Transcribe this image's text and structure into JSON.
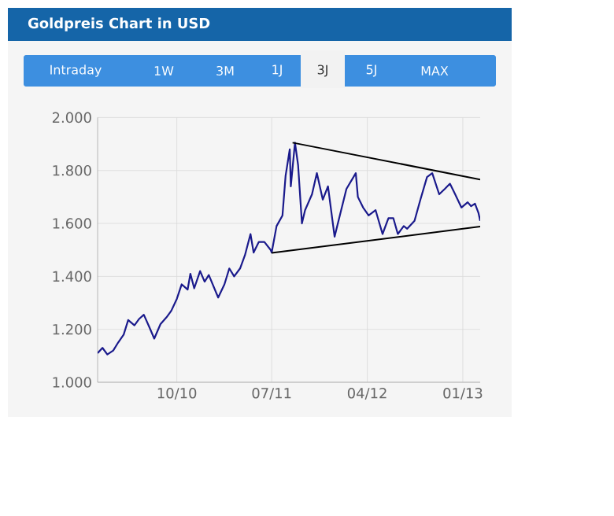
{
  "chart_data": {
    "type": "line",
    "title": "Goldpreis Chart in USD",
    "annotations": [
      "Intraday",
      "1W",
      "3M",
      "1J",
      "3J",
      "5J",
      "MAX"
    ],
    "xlim": [
      "2010-02-15",
      "2013-02-20"
    ],
    "xticks": [
      {
        "value": "2010-10-01",
        "label": "10/10"
      },
      {
        "value": "2011-07-01",
        "label": "07/11"
      },
      {
        "value": "2012-04-01",
        "label": "04/12"
      },
      {
        "value": "2013-01-01",
        "label": "01/13"
      }
    ],
    "ylim": [
      1000,
      2000
    ],
    "yticks": [
      {
        "value": 1000,
        "label": "1.000"
      },
      {
        "value": 1200,
        "label": "1.200"
      },
      {
        "value": 1400,
        "label": "1.400"
      },
      {
        "value": 1600,
        "label": "1.600"
      },
      {
        "value": 1800,
        "label": "1.800"
      },
      {
        "value": 2000,
        "label": "2.000"
      }
    ],
    "grid": true,
    "series": [
      {
        "color": "#1a1a8c",
        "x": [
          "2010-02-15",
          "2010-03-01",
          "2010-03-15",
          "2010-04-01",
          "2010-04-15",
          "2010-05-01",
          "2010-05-14",
          "2010-06-01",
          "2010-06-15",
          "2010-06-28",
          "2010-07-15",
          "2010-07-28",
          "2010-08-15",
          "2010-09-01",
          "2010-09-15",
          "2010-10-01",
          "2010-10-15",
          "2010-11-01",
          "2010-11-09",
          "2010-11-20",
          "2010-12-07",
          "2010-12-20",
          "2011-01-01",
          "2011-01-28",
          "2011-02-15",
          "2011-03-01",
          "2011-03-15",
          "2011-04-01",
          "2011-04-15",
          "2011-05-01",
          "2011-05-10",
          "2011-05-25",
          "2011-06-10",
          "2011-06-28",
          "2011-07-01",
          "2011-07-15",
          "2011-08-01",
          "2011-08-10",
          "2011-08-22",
          "2011-08-25",
          "2011-09-06",
          "2011-09-15",
          "2011-09-26",
          "2011-10-05",
          "2011-10-25",
          "2011-11-08",
          "2011-11-25",
          "2011-12-10",
          "2011-12-29",
          "2012-01-15",
          "2012-02-01",
          "2012-02-28",
          "2012-03-05",
          "2012-03-20",
          "2012-04-05",
          "2012-04-25",
          "2012-05-15",
          "2012-06-01",
          "2012-06-15",
          "2012-06-28",
          "2012-07-15",
          "2012-07-25",
          "2012-08-15",
          "2012-09-01",
          "2012-09-20",
          "2012-10-05",
          "2012-10-15",
          "2012-10-25",
          "2012-11-10",
          "2012-11-25",
          "2012-12-10",
          "2012-12-28",
          "2013-01-15",
          "2013-01-25",
          "2013-02-05",
          "2013-02-15",
          "2013-02-20"
        ],
        "values": [
          1110,
          1130,
          1105,
          1120,
          1150,
          1180,
          1235,
          1215,
          1240,
          1255,
          1205,
          1165,
          1220,
          1245,
          1270,
          1315,
          1370,
          1350,
          1410,
          1355,
          1420,
          1380,
          1405,
          1320,
          1370,
          1430,
          1400,
          1430,
          1480,
          1560,
          1490,
          1530,
          1530,
          1500,
          1490,
          1590,
          1630,
          1780,
          1880,
          1740,
          1905,
          1820,
          1600,
          1650,
          1710,
          1790,
          1690,
          1740,
          1550,
          1640,
          1730,
          1790,
          1700,
          1660,
          1630,
          1650,
          1560,
          1620,
          1620,
          1560,
          1590,
          1580,
          1610,
          1690,
          1775,
          1790,
          1750,
          1710,
          1730,
          1750,
          1710,
          1660,
          1680,
          1665,
          1675,
          1640,
          1610
        ]
      },
      {
        "type": "line",
        "color": "#000000",
        "x": [
          "2011-08-30",
          "2013-02-20"
        ],
        "values": [
          1905,
          1766
        ]
      },
      {
        "type": "line",
        "color": "#000000",
        "x": [
          "2011-07-01",
          "2013-02-20"
        ],
        "values": [
          1489,
          1588
        ]
      }
    ]
  }
}
